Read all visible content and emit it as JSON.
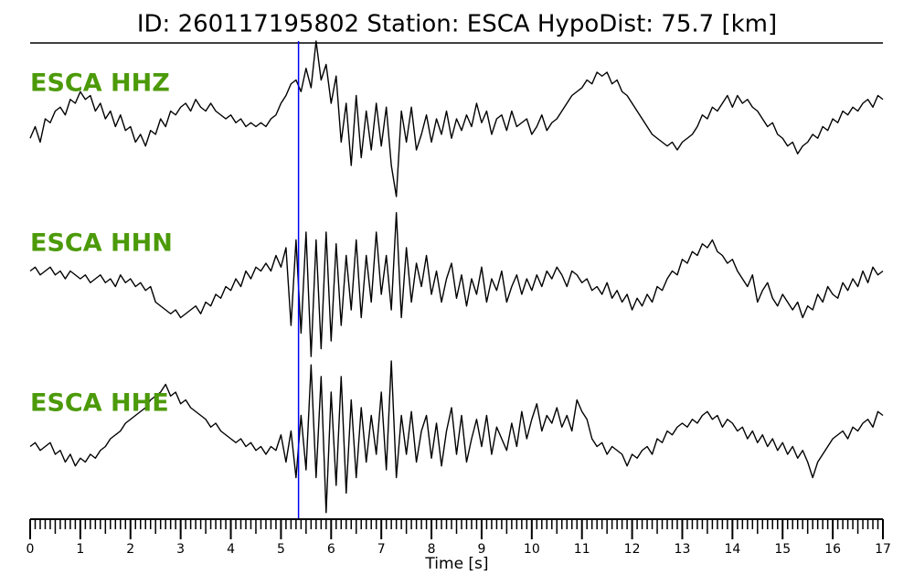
{
  "chart_data": {
    "type": "line",
    "title": "ID: 260117195802   Station: ESCA   HypoDist:    75.7 [km]",
    "xlabel": "Time [s]",
    "xlim": [
      0,
      17
    ],
    "xticks": [
      0,
      1,
      2,
      3,
      4,
      5,
      6,
      7,
      8,
      9,
      10,
      11,
      12,
      13,
      14,
      15,
      16,
      17
    ],
    "ylim": [
      -1,
      1
    ],
    "label_color": "#4c9a0a",
    "markers": [
      {
        "x": 5.35,
        "color": "#0000ff"
      }
    ],
    "x": [
      0,
      0.1,
      0.2,
      0.3,
      0.4,
      0.5,
      0.6,
      0.7,
      0.8,
      0.9,
      1,
      1.1,
      1.2,
      1.3,
      1.4,
      1.5,
      1.6,
      1.7,
      1.8,
      1.9,
      2,
      2.1,
      2.2,
      2.3,
      2.4,
      2.5,
      2.6,
      2.7,
      2.8,
      2.9,
      3,
      3.1,
      3.2,
      3.3,
      3.4,
      3.5,
      3.6,
      3.7,
      3.8,
      3.9,
      4,
      4.1,
      4.2,
      4.3,
      4.4,
      4.5,
      4.6,
      4.7,
      4.8,
      4.9,
      5,
      5.1,
      5.2,
      5.3,
      5.4,
      5.5,
      5.6,
      5.7,
      5.8,
      5.9,
      6,
      6.1,
      6.2,
      6.3,
      6.4,
      6.5,
      6.6,
      6.7,
      6.8,
      6.9,
      7,
      7.1,
      7.2,
      7.3,
      7.4,
      7.5,
      7.6,
      7.7,
      7.8,
      7.9,
      8,
      8.1,
      8.2,
      8.3,
      8.4,
      8.5,
      8.6,
      8.7,
      8.8,
      8.9,
      9,
      9.1,
      9.2,
      9.3,
      9.4,
      9.5,
      9.6,
      9.7,
      9.8,
      9.9,
      10,
      10.1,
      10.2,
      10.3,
      10.4,
      10.5,
      10.6,
      10.7,
      10.8,
      10.9,
      11,
      11.1,
      11.2,
      11.3,
      11.4,
      11.5,
      11.6,
      11.7,
      11.8,
      11.9,
      12,
      12.1,
      12.2,
      12.3,
      12.4,
      12.5,
      12.6,
      12.7,
      12.8,
      12.9,
      13,
      13.1,
      13.2,
      13.3,
      13.4,
      13.5,
      13.6,
      13.7,
      13.8,
      13.9,
      14,
      14.1,
      14.2,
      14.3,
      14.4,
      14.5,
      14.6,
      14.7,
      14.8,
      14.9,
      15,
      15.1,
      15.2,
      15.3,
      15.4,
      15.5,
      15.6,
      15.7,
      15.8,
      15.9,
      16,
      16.1,
      16.2,
      16.3,
      16.4,
      16.5,
      16.6,
      16.7,
      16.8,
      16.9,
      17
    ],
    "series": [
      {
        "name": "ESCA HHZ",
        "color": "#000000",
        "values": [
          -0.25,
          -0.1,
          -0.3,
          0.0,
          -0.05,
          0.1,
          0.15,
          0.05,
          0.25,
          0.2,
          0.35,
          0.25,
          0.3,
          0.1,
          0.2,
          0.0,
          0.1,
          -0.1,
          0.05,
          -0.15,
          -0.1,
          -0.3,
          -0.2,
          -0.35,
          -0.15,
          -0.2,
          0.0,
          -0.1,
          0.1,
          0.05,
          0.15,
          0.2,
          0.1,
          0.25,
          0.15,
          0.1,
          0.2,
          0.1,
          0.05,
          0.0,
          0.05,
          -0.05,
          0.0,
          -0.1,
          -0.05,
          -0.1,
          -0.05,
          -0.1,
          0.0,
          0.05,
          0.2,
          0.3,
          0.45,
          0.5,
          0.35,
          0.65,
          0.4,
          1.0,
          0.5,
          0.7,
          0.2,
          0.55,
          -0.3,
          0.2,
          -0.6,
          0.3,
          -0.5,
          0.1,
          -0.4,
          0.2,
          -0.35,
          0.15,
          -0.6,
          -1.0,
          0.1,
          -0.3,
          0.15,
          -0.4,
          -0.2,
          0.05,
          -0.3,
          0.0,
          -0.2,
          0.1,
          -0.25,
          0.0,
          -0.15,
          0.05,
          -0.1,
          0.2,
          -0.05,
          0.1,
          -0.2,
          0.0,
          0.05,
          -0.15,
          0.1,
          -0.1,
          -0.05,
          0.0,
          -0.2,
          -0.1,
          0.05,
          -0.15,
          -0.05,
          0.0,
          0.1,
          0.2,
          0.3,
          0.35,
          0.4,
          0.5,
          0.45,
          0.6,
          0.55,
          0.6,
          0.45,
          0.5,
          0.35,
          0.3,
          0.2,
          0.1,
          0.0,
          -0.1,
          -0.2,
          -0.25,
          -0.3,
          -0.35,
          -0.3,
          -0.4,
          -0.3,
          -0.25,
          -0.2,
          -0.1,
          0.05,
          0.0,
          0.15,
          0.1,
          0.2,
          0.3,
          0.15,
          0.3,
          0.2,
          0.25,
          0.15,
          0.1,
          0.0,
          -0.1,
          -0.05,
          -0.2,
          -0.25,
          -0.35,
          -0.3,
          -0.45,
          -0.35,
          -0.3,
          -0.2,
          -0.25,
          -0.1,
          -0.15,
          0.0,
          -0.05,
          0.1,
          0.05,
          0.15,
          0.1,
          0.2,
          0.25,
          0.15,
          0.3,
          0.25
        ]
      },
      {
        "name": "ESCA HHN",
        "color": "#000000",
        "values": [
          0.1,
          0.15,
          0.05,
          0.1,
          0.15,
          0.05,
          0.1,
          0.0,
          0.1,
          0.05,
          0.0,
          0.05,
          -0.05,
          0.0,
          0.05,
          -0.05,
          0.0,
          -0.1,
          0.05,
          -0.05,
          0.0,
          -0.1,
          -0.05,
          -0.15,
          -0.1,
          -0.3,
          -0.35,
          -0.4,
          -0.45,
          -0.4,
          -0.5,
          -0.45,
          -0.4,
          -0.35,
          -0.45,
          -0.3,
          -0.35,
          -0.2,
          -0.25,
          -0.1,
          -0.15,
          0.0,
          -0.1,
          0.1,
          0.0,
          0.15,
          0.1,
          0.2,
          0.1,
          0.3,
          0.15,
          0.4,
          -0.6,
          0.5,
          -0.7,
          0.6,
          -1.0,
          0.5,
          -0.9,
          0.6,
          -0.8,
          0.45,
          -0.6,
          0.3,
          -0.4,
          0.5,
          -0.5,
          0.3,
          -0.3,
          0.6,
          -0.2,
          0.3,
          -0.4,
          0.85,
          -0.5,
          0.4,
          -0.3,
          0.2,
          -0.1,
          0.3,
          -0.2,
          0.1,
          -0.3,
          0.0,
          0.2,
          -0.25,
          0.05,
          -0.35,
          0.0,
          -0.2,
          0.15,
          -0.3,
          0.0,
          -0.15,
          0.1,
          -0.3,
          -0.1,
          0.05,
          -0.2,
          0.0,
          -0.15,
          0.05,
          -0.1,
          0.1,
          0.0,
          0.15,
          0.05,
          -0.1,
          0.1,
          0.05,
          -0.05,
          0.0,
          -0.15,
          -0.1,
          -0.2,
          -0.05,
          -0.25,
          -0.15,
          -0.3,
          -0.2,
          -0.4,
          -0.25,
          -0.35,
          -0.2,
          -0.3,
          -0.1,
          -0.15,
          0.0,
          0.1,
          0.05,
          0.25,
          0.2,
          0.35,
          0.3,
          0.45,
          0.4,
          0.5,
          0.35,
          0.3,
          0.2,
          0.25,
          0.1,
          0.0,
          -0.1,
          0.05,
          -0.3,
          -0.15,
          -0.05,
          -0.25,
          -0.35,
          -0.2,
          -0.3,
          -0.4,
          -0.3,
          -0.5,
          -0.35,
          -0.4,
          -0.2,
          -0.3,
          -0.1,
          -0.2,
          -0.25,
          -0.05,
          -0.15,
          0.0,
          -0.1,
          0.1,
          -0.05,
          0.15,
          0.05,
          0.1
        ]
      },
      {
        "name": "ESCA HHE",
        "color": "#000000",
        "values": [
          -0.1,
          -0.05,
          -0.15,
          -0.1,
          -0.05,
          -0.2,
          -0.15,
          -0.3,
          -0.2,
          -0.35,
          -0.25,
          -0.3,
          -0.2,
          -0.25,
          -0.15,
          -0.1,
          0.0,
          0.05,
          0.1,
          0.2,
          0.25,
          0.3,
          0.35,
          0.4,
          0.5,
          0.55,
          0.6,
          0.7,
          0.55,
          0.6,
          0.45,
          0.5,
          0.4,
          0.35,
          0.3,
          0.25,
          0.15,
          0.2,
          0.1,
          0.05,
          0.0,
          -0.05,
          0.0,
          -0.1,
          -0.05,
          -0.15,
          -0.1,
          -0.2,
          -0.1,
          -0.15,
          0.05,
          -0.3,
          0.1,
          -0.5,
          0.3,
          -0.4,
          0.95,
          -0.5,
          0.8,
          -0.95,
          0.6,
          -0.6,
          0.8,
          -0.7,
          0.5,
          -0.5,
          0.4,
          -0.3,
          0.3,
          -0.2,
          0.6,
          -0.4,
          1.0,
          -0.5,
          0.3,
          -0.2,
          0.35,
          -0.3,
          0.1,
          0.3,
          -0.25,
          0.2,
          -0.35,
          0.1,
          0.4,
          -0.2,
          0.3,
          -0.3,
          0.0,
          0.25,
          -0.1,
          0.3,
          -0.2,
          0.15,
          0.0,
          -0.15,
          0.2,
          -0.1,
          0.35,
          0.0,
          0.25,
          0.45,
          0.1,
          0.3,
          0.2,
          0.4,
          0.15,
          0.3,
          0.1,
          0.5,
          0.35,
          0.25,
          0.0,
          -0.1,
          -0.05,
          -0.2,
          -0.1,
          -0.15,
          -0.2,
          -0.35,
          -0.2,
          -0.25,
          -0.15,
          -0.1,
          -0.2,
          0.0,
          -0.05,
          0.1,
          0.05,
          0.15,
          0.2,
          0.15,
          0.25,
          0.2,
          0.3,
          0.35,
          0.25,
          0.3,
          0.15,
          0.25,
          0.2,
          0.1,
          0.15,
          0.0,
          0.1,
          -0.05,
          0.05,
          -0.1,
          0.0,
          -0.15,
          -0.05,
          -0.2,
          -0.1,
          -0.25,
          -0.15,
          -0.3,
          -0.5,
          -0.3,
          -0.2,
          -0.1,
          0.0,
          0.05,
          0.1,
          0.0,
          0.15,
          0.1,
          0.2,
          0.25,
          0.15,
          0.35,
          0.3
        ]
      }
    ]
  }
}
